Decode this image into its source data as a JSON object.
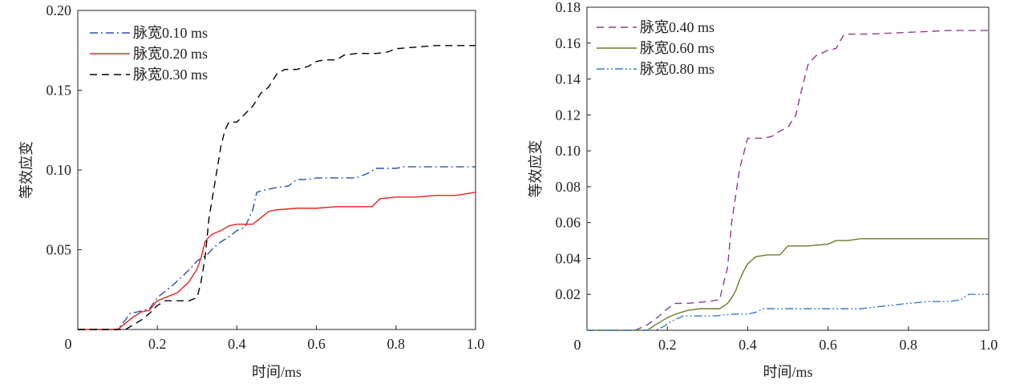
{
  "chart_data": [
    {
      "type": "line",
      "xlabel": "时间/ms",
      "ylabel": "等效应变",
      "xlim": [
        0,
        1.0
      ],
      "ylim": [
        0,
        0.2
      ],
      "xticks": [
        0,
        0.2,
        0.4,
        0.6,
        0.8,
        1.0
      ],
      "xtick_labels": [
        "0",
        "0.2",
        "0.4",
        "0.6",
        "0.8",
        "1.0"
      ],
      "yticks": [
        0.05,
        0.1,
        0.15,
        0.2
      ],
      "ytick_labels": [
        "0.05",
        "0.10",
        "0.15",
        "0.20"
      ],
      "legend_position": "top-left",
      "series": [
        {
          "name": "脉宽0.10 ms",
          "color": "#2e4fa8",
          "dash": "dashdot",
          "x": [
            0,
            0.1,
            0.12,
            0.13,
            0.15,
            0.18,
            0.2,
            0.22,
            0.24,
            0.27,
            0.29,
            0.3,
            0.32,
            0.33,
            0.34,
            0.36,
            0.38,
            0.4,
            0.42,
            0.44,
            0.45,
            0.48,
            0.5,
            0.53,
            0.55,
            0.58,
            0.6,
            0.65,
            0.7,
            0.73,
            0.75,
            0.8,
            0.82,
            0.9,
            1.0
          ],
          "y": [
            0,
            0,
            0.006,
            0.01,
            0.011,
            0.013,
            0.02,
            0.024,
            0.028,
            0.035,
            0.04,
            0.043,
            0.046,
            0.048,
            0.051,
            0.055,
            0.058,
            0.062,
            0.064,
            0.075,
            0.086,
            0.088,
            0.089,
            0.09,
            0.094,
            0.094,
            0.095,
            0.095,
            0.095,
            0.098,
            0.101,
            0.101,
            0.102,
            0.102,
            0.102
          ]
        },
        {
          "name": "脉宽0.20 ms",
          "color": "#e8231d",
          "dash": "solid",
          "x": [
            0,
            0.1,
            0.12,
            0.14,
            0.16,
            0.18,
            0.2,
            0.22,
            0.25,
            0.28,
            0.3,
            0.31,
            0.32,
            0.33,
            0.34,
            0.36,
            0.38,
            0.4,
            0.42,
            0.44,
            0.46,
            0.48,
            0.5,
            0.55,
            0.6,
            0.65,
            0.7,
            0.74,
            0.76,
            0.8,
            0.85,
            0.9,
            0.95,
            1.0
          ],
          "y": [
            0,
            0,
            0.004,
            0.008,
            0.011,
            0.012,
            0.018,
            0.02,
            0.023,
            0.03,
            0.038,
            0.045,
            0.055,
            0.058,
            0.06,
            0.062,
            0.065,
            0.066,
            0.066,
            0.066,
            0.07,
            0.074,
            0.075,
            0.076,
            0.076,
            0.077,
            0.077,
            0.077,
            0.082,
            0.083,
            0.083,
            0.084,
            0.084,
            0.086
          ]
        },
        {
          "name": "脉宽0.30 ms",
          "color": "#000000",
          "dash": "dashed",
          "x": [
            0,
            0.12,
            0.14,
            0.16,
            0.18,
            0.2,
            0.22,
            0.25,
            0.28,
            0.3,
            0.31,
            0.32,
            0.33,
            0.35,
            0.36,
            0.37,
            0.38,
            0.4,
            0.42,
            0.44,
            0.46,
            0.48,
            0.5,
            0.52,
            0.55,
            0.58,
            0.6,
            0.62,
            0.65,
            0.67,
            0.7,
            0.75,
            0.78,
            0.8,
            0.85,
            0.9,
            1.0
          ],
          "y": [
            0,
            0,
            0.003,
            0.006,
            0.01,
            0.015,
            0.018,
            0.018,
            0.018,
            0.02,
            0.03,
            0.045,
            0.07,
            0.1,
            0.115,
            0.125,
            0.13,
            0.13,
            0.135,
            0.14,
            0.148,
            0.152,
            0.16,
            0.163,
            0.163,
            0.165,
            0.168,
            0.169,
            0.169,
            0.172,
            0.173,
            0.173,
            0.174,
            0.176,
            0.177,
            0.178,
            0.178
          ]
        }
      ]
    },
    {
      "type": "line",
      "xlabel": "时间/ms",
      "ylabel": "等效应变",
      "xlim": [
        0,
        1.0
      ],
      "ylim": [
        0,
        0.18
      ],
      "xticks": [
        0,
        0.2,
        0.4,
        0.6,
        0.8,
        1.0
      ],
      "xtick_labels": [
        "0",
        "0.2",
        "0.4",
        "0.6",
        "0.8",
        "1.0"
      ],
      "yticks": [
        0.02,
        0.04,
        0.06,
        0.08,
        0.1,
        0.12,
        0.14,
        0.16,
        0.18
      ],
      "ytick_labels": [
        "0.02",
        "0.04",
        "0.06",
        "0.08",
        "0.10",
        "0.12",
        "0.14",
        "0.16",
        "0.18"
      ],
      "legend_position": "top-left",
      "series": [
        {
          "name": "脉宽0.40 ms",
          "color": "#8e3a8f",
          "dash": "dashed",
          "x": [
            0,
            0.12,
            0.15,
            0.18,
            0.2,
            0.22,
            0.25,
            0.3,
            0.33,
            0.35,
            0.36,
            0.38,
            0.4,
            0.42,
            0.44,
            0.46,
            0.48,
            0.5,
            0.52,
            0.53,
            0.55,
            0.57,
            0.6,
            0.62,
            0.64,
            0.7,
            0.8,
            0.9,
            1.0
          ],
          "y": [
            0,
            0,
            0.003,
            0.008,
            0.012,
            0.015,
            0.015,
            0.016,
            0.017,
            0.035,
            0.06,
            0.09,
            0.107,
            0.107,
            0.107,
            0.108,
            0.111,
            0.113,
            0.12,
            0.13,
            0.148,
            0.153,
            0.156,
            0.157,
            0.165,
            0.165,
            0.166,
            0.167,
            0.167
          ]
        },
        {
          "name": "脉宽0.60 ms",
          "color": "#6b7a2a",
          "dash": "solid",
          "x": [
            0,
            0.15,
            0.17,
            0.2,
            0.22,
            0.25,
            0.28,
            0.3,
            0.33,
            0.35,
            0.36,
            0.37,
            0.38,
            0.39,
            0.4,
            0.42,
            0.45,
            0.48,
            0.5,
            0.55,
            0.6,
            0.62,
            0.65,
            0.68,
            0.7,
            0.8,
            0.9,
            1.0
          ],
          "y": [
            0,
            0,
            0.003,
            0.007,
            0.009,
            0.011,
            0.012,
            0.012,
            0.012,
            0.015,
            0.018,
            0.022,
            0.028,
            0.033,
            0.037,
            0.041,
            0.042,
            0.042,
            0.047,
            0.047,
            0.048,
            0.05,
            0.05,
            0.051,
            0.051,
            0.051,
            0.051,
            0.051
          ]
        },
        {
          "name": "脉宽0.80 ms",
          "color": "#3d7cc9",
          "dash": "dashdotdot",
          "x": [
            0,
            0.17,
            0.19,
            0.21,
            0.24,
            0.28,
            0.32,
            0.36,
            0.4,
            0.42,
            0.44,
            0.5,
            0.6,
            0.68,
            0.72,
            0.76,
            0.8,
            0.85,
            0.9,
            0.93,
            0.95,
            1.0
          ],
          "y": [
            0,
            0,
            0.002,
            0.005,
            0.008,
            0.008,
            0.008,
            0.009,
            0.009,
            0.01,
            0.012,
            0.012,
            0.012,
            0.012,
            0.013,
            0.014,
            0.015,
            0.016,
            0.016,
            0.017,
            0.02,
            0.02
          ]
        }
      ]
    }
  ]
}
